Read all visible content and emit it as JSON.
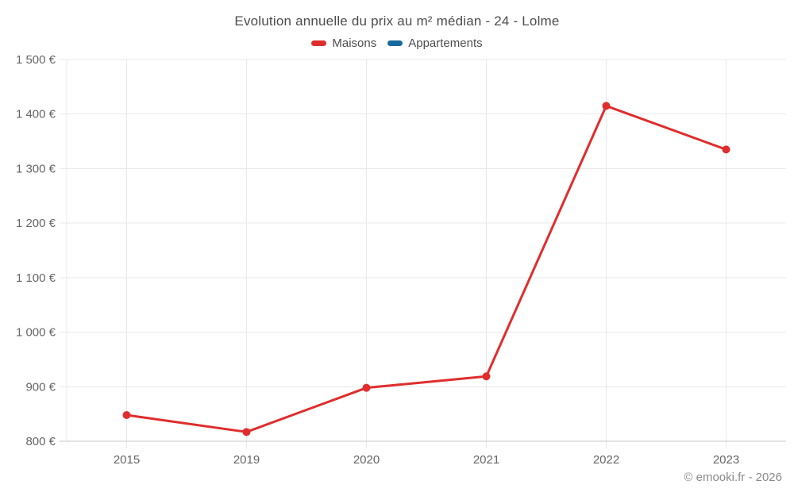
{
  "chart_data": {
    "type": "line",
    "title": "Evolution annuelle du prix au m² médian - 24 - Lolme",
    "categories": [
      "2015",
      "2019",
      "2020",
      "2021",
      "2022",
      "2023"
    ],
    "series": [
      {
        "name": "Maisons",
        "color": "#e02d2d",
        "values": [
          848,
          817,
          898,
          919,
          1415,
          1335
        ]
      },
      {
        "name": "Appartements",
        "color": "#16699e",
        "values": []
      }
    ],
    "ylim": [
      800,
      1500
    ],
    "ytick_step": 100,
    "ytick_suffix": "€",
    "xlabel": "",
    "ylabel": "",
    "grid": true,
    "legend_position": "top",
    "colors": {
      "gridline": "#e9e9e9",
      "axis_line": "#c9c9c9",
      "tick_label": "#666666"
    }
  },
  "footer": {
    "credit": "© emooki.fr - 2026"
  }
}
